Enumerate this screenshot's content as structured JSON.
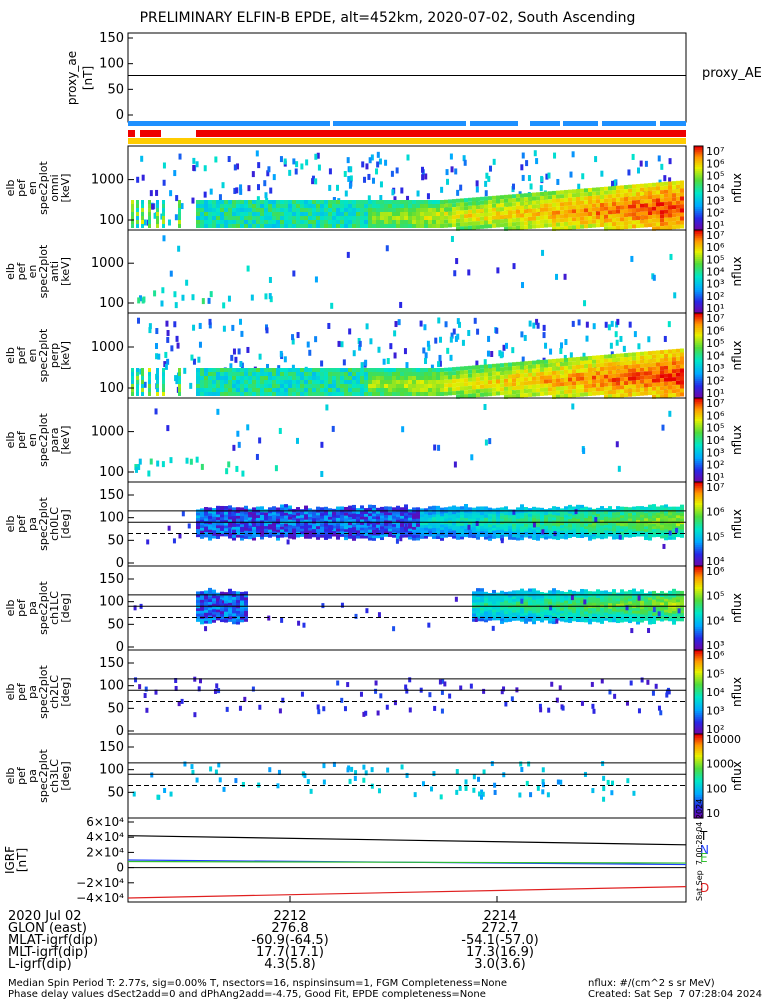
{
  "title": "PRELIMINARY ELFIN-B EPDE, alt=452km, 2020-07-02, South Ascending",
  "proxy_panel": {
    "ylabel": [
      "proxy_ae",
      "[nT]"
    ],
    "legend": "proxy_AE",
    "yticks": [
      "150",
      "100",
      "50",
      "0"
    ]
  },
  "spectra_panels": [
    {
      "ylabel": [
        "elb",
        "pef",
        "en",
        "spec2plot",
        "omni",
        "[keV]"
      ],
      "yticks": [
        "1000",
        "100"
      ],
      "cbar_label": "nflux",
      "cbar_ticks": [
        "10⁷",
        "10⁶",
        "10⁵",
        "10⁴",
        "10³",
        "10²",
        "10¹"
      ]
    },
    {
      "ylabel": [
        "elb",
        "pef",
        "en",
        "spec2plot",
        "anti",
        "[keV]"
      ],
      "yticks": [
        "1000",
        "100"
      ],
      "cbar_label": "nflux",
      "cbar_ticks": [
        "10⁷",
        "10⁶",
        "10⁵",
        "10⁴",
        "10³",
        "10²",
        "10¹"
      ]
    },
    {
      "ylabel": [
        "elb",
        "pef",
        "en",
        "spec2plot",
        "perp",
        "[keV]"
      ],
      "yticks": [
        "1000",
        "100"
      ],
      "cbar_label": "nflux",
      "cbar_ticks": [
        "10⁷",
        "10⁶",
        "10⁵",
        "10⁴",
        "10³",
        "10²",
        "10¹"
      ]
    },
    {
      "ylabel": [
        "elb",
        "pef",
        "en",
        "spec2plot",
        "para",
        "[keV]"
      ],
      "yticks": [
        "1000",
        "100"
      ],
      "cbar_label": "nflux",
      "cbar_ticks": [
        "10⁷",
        "10⁶",
        "10⁵",
        "10⁴",
        "10³",
        "10²",
        "10¹"
      ]
    }
  ],
  "pa_panels": [
    {
      "ylabel": [
        "elb",
        "pef",
        "pa",
        "spec2plot",
        "ch0LC",
        "[deg]"
      ],
      "yticks": [
        "150",
        "100",
        "50",
        "0"
      ],
      "cbar_label": "nflux",
      "cbar_ticks": [
        "10⁷",
        "10⁶",
        "10⁵",
        "10⁴"
      ]
    },
    {
      "ylabel": [
        "elb",
        "pef",
        "pa",
        "spec2plot",
        "ch1LC",
        "[deg]"
      ],
      "yticks": [
        "150",
        "100",
        "50",
        "0"
      ],
      "cbar_label": "nflux",
      "cbar_ticks": [
        "10⁶",
        "10⁵",
        "10⁴",
        "10³"
      ]
    },
    {
      "ylabel": [
        "elb",
        "pef",
        "pa",
        "spec2plot",
        "ch2LC",
        "[deg]"
      ],
      "yticks": [
        "150",
        "100",
        "50",
        "0"
      ],
      "cbar_label": "nflux",
      "cbar_ticks": [
        "10⁶",
        "10⁵",
        "10⁴",
        "10³",
        "10²"
      ]
    },
    {
      "ylabel": [
        "elb",
        "pef",
        "pa",
        "spec2plot",
        "ch3LC",
        "[deg]"
      ],
      "yticks": [
        "150",
        "100",
        "50"
      ],
      "cbar_label": "nflux",
      "cbar_ticks": [
        "10000",
        "1000",
        "100",
        "10"
      ]
    }
  ],
  "field_panel": {
    "ylabel": [
      "IGRF",
      "[nT]"
    ],
    "yticks": [
      "6×10⁴",
      "4×10⁴",
      "2×10⁴",
      "0",
      "−2×10⁴",
      "−4×10⁴"
    ],
    "legend": [
      "T",
      "N",
      "E",
      "D"
    ],
    "legend_colors": [
      "#000000",
      "#2040ff",
      "#30c030",
      "#e02020"
    ],
    "stamp": "Sat Sep  7 00:28:04 2024"
  },
  "chart_data": {
    "type": "line",
    "title": "PRELIMINARY ELFIN-B EPDE, alt=452km, 2020-07-02, South Ascending",
    "x": [
      "2212",
      "2214"
    ],
    "series": [
      {
        "name": "proxy_AE",
        "values": [
          77,
          77
        ]
      },
      {
        "name": "T",
        "values": [
          42000,
          30000
        ]
      },
      {
        "name": "N",
        "values": [
          10000,
          4000
        ]
      },
      {
        "name": "E",
        "values": [
          8000,
          6000
        ]
      },
      {
        "name": "D",
        "values": [
          -40000,
          -25000
        ]
      }
    ]
  },
  "footer": {
    "rows": [
      {
        "label": "2020 Jul 02",
        "v1": "2212",
        "v2": "2214"
      },
      {
        "label": "GLON (east)",
        "v1": "276.8",
        "v2": "272.7"
      },
      {
        "label": "MLAT-igrf(dip)",
        "v1": "-60.9(-64.5)",
        "v2": "-54.1(-57.0)"
      },
      {
        "label": "MLT-igrf(dip)",
        "v1": "17.7(17.1)",
        "v2": "17.3(16.9)"
      },
      {
        "label": "L-igrf(dip)",
        "v1": "4.3(5.8)",
        "v2": "3.0(3.6)"
      }
    ],
    "note1": "Median Spin Period T: 2.77s, sig=0.00% T, nsectors=16, nspinsinsum=1, FGM Completeness=None",
    "note2": "Phase delay values dSect2add=0 and dPhAng2add=-4.75, Good Fit, EPDE completeness=None",
    "units": "nflux: #/(cm^2 s sr MeV)",
    "created": "Created: Sat Sep  7 07:28:04 2024"
  }
}
